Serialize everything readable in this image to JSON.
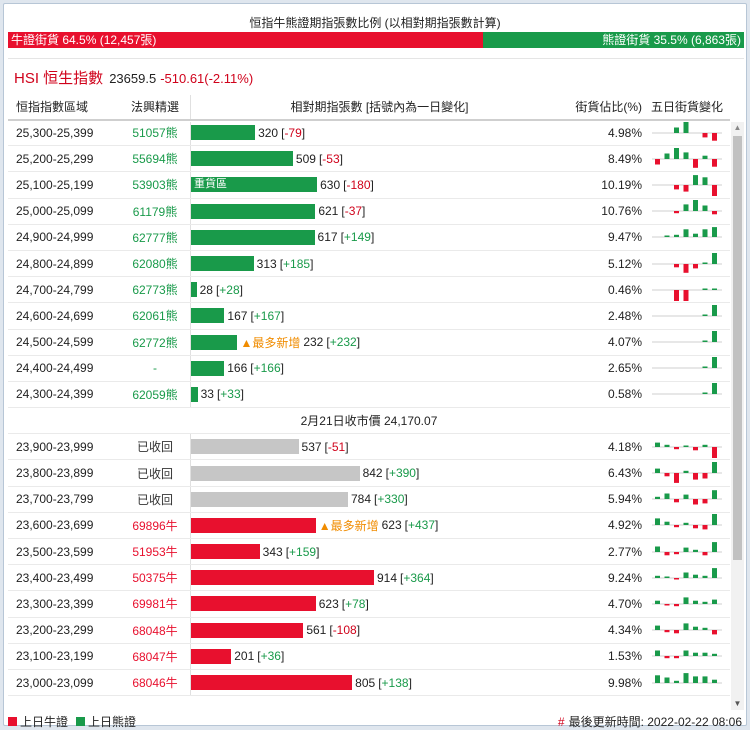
{
  "ratio": {
    "title": "恒指牛熊證期指張數比例 (以相對期指張數計算)",
    "bull_label": "牛證街貨 64.5% (12,457張)",
    "bear_label": "熊證街貨 35.5% (6,863張)",
    "bull_pct": 64.5,
    "bear_pct": 35.5,
    "colors": {
      "bull": "#e8102e",
      "bear": "#199a4a"
    }
  },
  "index": {
    "name": "HSI 恒生指數",
    "price": "23659.5",
    "change": "-510.61(-2.11%)"
  },
  "headers": {
    "range": "恒指指數區域",
    "code": "法興精選",
    "contracts": "相對期指張數 [括號內為一日變化]",
    "pct": "街貨佔比(%)",
    "five_day": "五日街貨變化"
  },
  "bar_max": 914,
  "bear_rows": [
    {
      "range": "25,300-25,399",
      "code": "51057熊",
      "contracts": 320,
      "contracts_text": "320",
      "change": "-79",
      "pct": "4.98%",
      "tag": "",
      "spark": [
        0,
        0,
        0.5,
        1,
        0,
        -0.4,
        -0.7
      ]
    },
    {
      "range": "25,200-25,299",
      "code": "55694熊",
      "contracts": 509,
      "contracts_text": "509",
      "change": "-53",
      "pct": "8.49%",
      "tag": "",
      "spark": [
        -0.5,
        0.5,
        1,
        0.6,
        -0.8,
        0.3,
        -0.7
      ]
    },
    {
      "range": "25,100-25,199",
      "code": "53903熊",
      "contracts": 630,
      "contracts_text": "630",
      "change": "-180",
      "pct": "10.19%",
      "tag": "",
      "bar_label": "重貨區",
      "spark": [
        0,
        0,
        -0.4,
        -0.6,
        0.9,
        0.7,
        -1
      ]
    },
    {
      "range": "25,000-25,099",
      "code": "61179熊",
      "contracts": 621,
      "contracts_text": "621",
      "change": "-37",
      "pct": "10.76%",
      "tag": "",
      "spark": [
        0,
        0,
        -0.2,
        0.6,
        1,
        0.5,
        -0.3
      ]
    },
    {
      "range": "24,900-24,999",
      "code": "62777熊",
      "contracts": 617,
      "contracts_text": "617",
      "change": "+149",
      "pct": "9.47%",
      "tag": "",
      "spark": [
        0,
        0.1,
        0.2,
        0.7,
        0.3,
        0.7,
        0.9
      ]
    },
    {
      "range": "24,800-24,899",
      "code": "62080熊",
      "contracts": 313,
      "contracts_text": "313",
      "change": "+185",
      "pct": "5.12%",
      "tag": "",
      "spark": [
        0,
        0,
        -0.3,
        -0.8,
        -0.4,
        0.1,
        1
      ]
    },
    {
      "range": "24,700-24,799",
      "code": "62773熊",
      "contracts": 28,
      "contracts_text": "28",
      "change": "+28",
      "pct": "0.46%",
      "tag": "",
      "spark": [
        0,
        0,
        -1,
        -1,
        0,
        0.1,
        0.1
      ]
    },
    {
      "range": "24,600-24,699",
      "code": "62061熊",
      "contracts": 167,
      "contracts_text": "167",
      "change": "+167",
      "pct": "2.48%",
      "tag": "",
      "spark": [
        0,
        0,
        0,
        0,
        0,
        0.05,
        1
      ]
    },
    {
      "range": "24,500-24,599",
      "code": "62772熊",
      "contracts": 232,
      "contracts_text": "232",
      "change": "+232",
      "pct": "4.07%",
      "tag": "▲最多新增",
      "spark": [
        0,
        0,
        0,
        0,
        0,
        0.05,
        1
      ]
    },
    {
      "range": "24,400-24,499",
      "code": "-",
      "contracts": 166,
      "contracts_text": "166",
      "change": "+166",
      "pct": "2.65%",
      "tag": "",
      "spark": [
        0,
        0,
        0,
        0,
        0,
        0.05,
        1
      ]
    },
    {
      "range": "24,300-24,399",
      "code": "62059熊",
      "contracts": 33,
      "contracts_text": "33",
      "change": "+33",
      "pct": "0.58%",
      "tag": "",
      "spark": [
        0,
        0,
        0,
        0,
        0,
        0.05,
        1
      ]
    }
  ],
  "separator": "2月21日收市價 24,170.07",
  "bull_rows": [
    {
      "range": "23,900-23,999",
      "code": "已收回",
      "kind": "recall",
      "contracts": 537,
      "contracts_text": "537",
      "change": "-51",
      "pct": "4.18%",
      "tag": "",
      "spark": [
        0.4,
        0.2,
        -0.2,
        0.1,
        -0.3,
        0.2,
        -1
      ]
    },
    {
      "range": "23,800-23,899",
      "code": "已收回",
      "kind": "recall",
      "contracts": 842,
      "contracts_text": "842",
      "change": "+390",
      "pct": "6.43%",
      "tag": "",
      "spark": [
        0.4,
        -0.3,
        -0.9,
        0.2,
        -0.6,
        -0.5,
        1
      ]
    },
    {
      "range": "23,700-23,799",
      "code": "已收回",
      "kind": "recall",
      "contracts": 784,
      "contracts_text": "784",
      "change": "+330",
      "pct": "5.94%",
      "tag": "",
      "spark": [
        0.2,
        0.5,
        -0.3,
        0.4,
        -0.5,
        -0.4,
        0.8
      ]
    },
    {
      "range": "23,600-23,699",
      "code": "69896牛",
      "kind": "bull",
      "contracts": 623,
      "contracts_text": "623",
      "change": "+437",
      "pct": "4.92%",
      "tag": "▲最多新增",
      "spark": [
        0.6,
        0.3,
        -0.2,
        0.2,
        -0.3,
        -0.4,
        1
      ]
    },
    {
      "range": "23,500-23,599",
      "code": "51953牛",
      "kind": "bull",
      "contracts": 343,
      "contracts_text": "343",
      "change": "+159",
      "pct": "2.77%",
      "tag": "",
      "spark": [
        0.5,
        -0.3,
        -0.2,
        0.4,
        0.2,
        -0.3,
        0.9
      ]
    },
    {
      "range": "23,400-23,499",
      "code": "50375牛",
      "kind": "bull",
      "contracts": 914,
      "contracts_text": "914",
      "change": "+364",
      "pct": "9.24%",
      "tag": "",
      "spark": [
        0.2,
        0.1,
        -0.1,
        0.5,
        0.3,
        0.2,
        0.9
      ]
    },
    {
      "range": "23,300-23,399",
      "code": "69981牛",
      "kind": "bull",
      "contracts": 623,
      "contracts_text": "623",
      "change": "+78",
      "pct": "4.70%",
      "tag": "",
      "spark": [
        0.3,
        -0.1,
        -0.2,
        0.6,
        0.3,
        0.2,
        0.4
      ]
    },
    {
      "range": "23,200-23,299",
      "code": "68048牛",
      "kind": "bull",
      "contracts": 561,
      "contracts_text": "561",
      "change": "-108",
      "pct": "4.34%",
      "tag": "",
      "spark": [
        0.4,
        -0.2,
        -0.3,
        0.6,
        0.3,
        0.2,
        -0.4
      ]
    },
    {
      "range": "23,100-23,199",
      "code": "68047牛",
      "kind": "bull",
      "contracts": 201,
      "contracts_text": "201",
      "change": "+36",
      "pct": "1.53%",
      "tag": "",
      "spark": [
        0.5,
        -0.2,
        -0.2,
        0.5,
        0.3,
        0.3,
        0.2
      ]
    },
    {
      "range": "23,000-23,099",
      "code": "68046牛",
      "kind": "bull",
      "contracts": 805,
      "contracts_text": "805",
      "change": "+138",
      "pct": "9.98%",
      "tag": "",
      "spark": [
        0.7,
        0.5,
        0.2,
        0.9,
        0.6,
        0.6,
        0.3
      ]
    }
  ],
  "legend": {
    "bull": "上日牛證",
    "bear": "上日熊證"
  },
  "updated": {
    "mark": "#",
    "text": "最後更新時間: 2022-02-22 08:06"
  }
}
